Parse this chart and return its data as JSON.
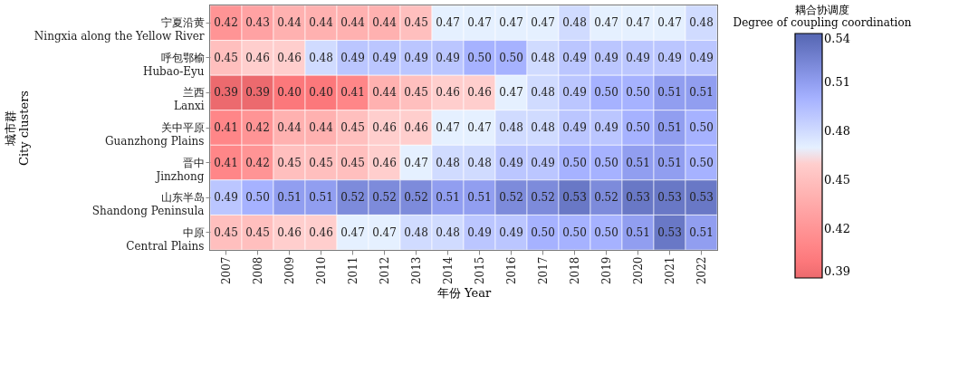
{
  "chart_data": {
    "type": "heatmap",
    "xlabel": "年份 Year",
    "ylabel": "城市群\nCity clusters",
    "legend_title": "耦合协调度\nDegree of coupling coordination",
    "categories": [
      "2007",
      "2008",
      "2009",
      "2010",
      "2011",
      "2012",
      "2013",
      "2014",
      "2015",
      "2016",
      "2017",
      "2018",
      "2019",
      "2020",
      "2021",
      "2022"
    ],
    "y_categories": [
      "宁夏沿黄\nNingxia along the Yellow River",
      "呼包鄂榆\nHubao-Eyu",
      "兰西\nLanxi",
      "关中平原\nGuanzhong Plains",
      "晋中\nJinzhong",
      "山东半岛\nShandong Peninsula",
      "中原\nCentral Plains"
    ],
    "cells": [
      [
        0.42,
        0.43,
        0.44,
        0.44,
        0.44,
        0.44,
        0.45,
        0.47,
        0.47,
        0.47,
        0.47,
        0.48,
        0.47,
        0.47,
        0.47,
        0.48
      ],
      [
        0.45,
        0.46,
        0.46,
        0.48,
        0.49,
        0.49,
        0.49,
        0.49,
        0.5,
        0.5,
        0.48,
        0.49,
        0.49,
        0.49,
        0.49,
        0.49
      ],
      [
        0.39,
        0.39,
        0.4,
        0.4,
        0.41,
        0.44,
        0.45,
        0.46,
        0.46,
        0.47,
        0.48,
        0.49,
        0.5,
        0.5,
        0.51,
        0.51
      ],
      [
        0.41,
        0.42,
        0.44,
        0.44,
        0.45,
        0.46,
        0.46,
        0.47,
        0.47,
        0.48,
        0.48,
        0.49,
        0.49,
        0.5,
        0.51,
        0.5
      ],
      [
        0.41,
        0.42,
        0.45,
        0.45,
        0.45,
        0.46,
        0.47,
        0.48,
        0.48,
        0.49,
        0.49,
        0.5,
        0.5,
        0.51,
        0.51,
        0.5
      ],
      [
        0.49,
        0.5,
        0.51,
        0.51,
        0.52,
        0.52,
        0.52,
        0.51,
        0.51,
        0.52,
        0.52,
        0.53,
        0.52,
        0.53,
        0.53,
        0.53
      ],
      [
        0.45,
        0.45,
        0.46,
        0.46,
        0.47,
        0.47,
        0.48,
        0.48,
        0.49,
        0.49,
        0.5,
        0.5,
        0.5,
        0.51,
        0.53,
        0.51
      ]
    ],
    "cell_labels": [
      [
        "0.42",
        "0.43",
        "0.44",
        "0.44",
        "0.44",
        "0.44",
        "0.45",
        "0.47",
        "0.47",
        "0.47",
        "0.47",
        "0.48",
        "0.47",
        "0.47",
        "0.47",
        "0.48"
      ],
      [
        "0.45",
        "0.46",
        "0.46",
        "0.48",
        "0.49",
        "0.49",
        "0.49",
        "0.49",
        "0.50",
        "0.50",
        "0.48",
        "0.49",
        "0.49",
        "0.49",
        "0.49",
        "0.49"
      ],
      [
        "0.39",
        "0.39",
        "0.40",
        "0.40",
        "0.41",
        "0.44",
        "0.45",
        "0.46",
        "0.46",
        "0.47",
        "0.48",
        "0.49",
        "0.50",
        "0.50",
        "0.51",
        "0.51"
      ],
      [
        "0.41",
        "0.42",
        "0.44",
        "0.44",
        "0.45",
        "0.46",
        "0.46",
        "0.47",
        "0.47",
        "0.48",
        "0.48",
        "0.49",
        "0.49",
        "0.50",
        "0.51",
        "0.50"
      ],
      [
        "0.41",
        "0.42",
        "0.45",
        "0.45",
        "0.45",
        "0.46",
        "0.47",
        "0.48",
        "0.48",
        "0.49",
        "0.49",
        "0.50",
        "0.50",
        "0.51",
        "0.51",
        "0.50"
      ],
      [
        "0.49",
        "0.50",
        "0.51",
        "0.51",
        "0.52",
        "0.52",
        "0.52",
        "0.51",
        "0.51",
        "0.52",
        "0.52",
        "0.53",
        "0.52",
        "0.53",
        "0.53",
        "0.53"
      ],
      [
        "0.45",
        "0.45",
        "0.46",
        "0.46",
        "0.47",
        "0.47",
        "0.48",
        "0.48",
        "0.49",
        "0.49",
        "0.50",
        "0.50",
        "0.50",
        "0.51",
        "0.53",
        "0.51"
      ]
    ],
    "clim": [
      0.39,
      0.54
    ],
    "cticks": [
      0.39,
      0.42,
      0.45,
      0.48,
      0.51,
      0.54
    ]
  }
}
